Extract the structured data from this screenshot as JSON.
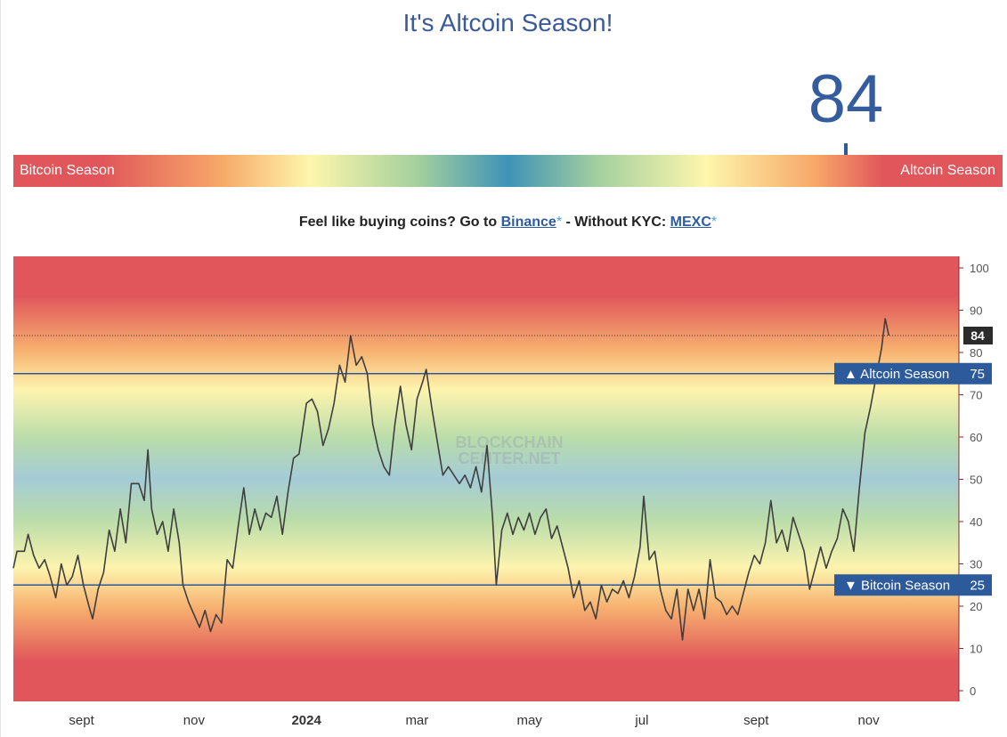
{
  "header": {
    "title": "It's Altcoin Season!",
    "index_value": "84"
  },
  "gauge": {
    "left_label": "Bitcoin Season",
    "right_label": "Altcoin Season",
    "value": 84,
    "min": 0,
    "max": 100
  },
  "promo": {
    "lead": "Feel like buying coins? Go to ",
    "link1": "Binance",
    "star1": "*",
    "middle": " - Without KYC: ",
    "link2": "MEXC",
    "star2": "*"
  },
  "colors": {
    "title": "#3a5a99",
    "line": "#3f3f3f",
    "threshold_line": "#2d5a9a",
    "bitcoin_red": "#e0565b",
    "mid_blue": "#3f93b7"
  },
  "chart_data": {
    "type": "line",
    "watermark": [
      "BLOCKCHAIN",
      "CENTER.NET"
    ],
    "ylim": [
      0,
      100
    ],
    "yticks": [
      0,
      10,
      20,
      30,
      40,
      50,
      60,
      70,
      80,
      90,
      100
    ],
    "xticks": [
      {
        "label": "sept",
        "x": "2023-09-01",
        "bold": false
      },
      {
        "label": "nov",
        "x": "2023-11-01",
        "bold": false
      },
      {
        "label": "2024",
        "x": "2024-01-01",
        "bold": true
      },
      {
        "label": "mar",
        "x": "2024-03-01",
        "bold": false
      },
      {
        "label": "may",
        "x": "2024-05-01",
        "bold": false
      },
      {
        "label": "jul",
        "x": "2024-07-01",
        "bold": false
      },
      {
        "label": "sept",
        "x": "2024-09-01",
        "bold": false
      },
      {
        "label": "nov",
        "x": "2024-11-01",
        "bold": false
      }
    ],
    "xlim": [
      "2023-07-26",
      "2024-12-20"
    ],
    "thresholds": [
      {
        "label": "▲ Altcoin Season",
        "value": 75
      },
      {
        "label": "▼ Bitcoin Season",
        "value": 25
      }
    ],
    "current": {
      "label": "84",
      "value": 84
    },
    "series": [
      {
        "points": [
          [
            "2023-07-26",
            29
          ],
          [
            "2023-07-28",
            33
          ],
          [
            "2023-08-01",
            33
          ],
          [
            "2023-08-03",
            37
          ],
          [
            "2023-08-06",
            32
          ],
          [
            "2023-08-09",
            29
          ],
          [
            "2023-08-12",
            31
          ],
          [
            "2023-08-15",
            27
          ],
          [
            "2023-08-18",
            22
          ],
          [
            "2023-08-21",
            30
          ],
          [
            "2023-08-24",
            25
          ],
          [
            "2023-08-27",
            27
          ],
          [
            "2023-08-30",
            32
          ],
          [
            "2023-09-02",
            25
          ],
          [
            "2023-09-05",
            20
          ],
          [
            "2023-09-07",
            17
          ],
          [
            "2023-09-10",
            24
          ],
          [
            "2023-09-13",
            28
          ],
          [
            "2023-09-16",
            38
          ],
          [
            "2023-09-19",
            33
          ],
          [
            "2023-09-22",
            43
          ],
          [
            "2023-09-25",
            35
          ],
          [
            "2023-09-28",
            49
          ],
          [
            "2023-10-02",
            49
          ],
          [
            "2023-10-05",
            45
          ],
          [
            "2023-10-07",
            57
          ],
          [
            "2023-10-09",
            43
          ],
          [
            "2023-10-12",
            37
          ],
          [
            "2023-10-15",
            40
          ],
          [
            "2023-10-18",
            33
          ],
          [
            "2023-10-21",
            43
          ],
          [
            "2023-10-24",
            35
          ],
          [
            "2023-10-26",
            25
          ],
          [
            "2023-10-29",
            21
          ],
          [
            "2023-11-01",
            18
          ],
          [
            "2023-11-04",
            15
          ],
          [
            "2023-11-07",
            19
          ],
          [
            "2023-11-10",
            14
          ],
          [
            "2023-11-13",
            18
          ],
          [
            "2023-11-16",
            16
          ],
          [
            "2023-11-19",
            31
          ],
          [
            "2023-11-22",
            29
          ],
          [
            "2023-11-25",
            39
          ],
          [
            "2023-11-28",
            48
          ],
          [
            "2023-12-01",
            37
          ],
          [
            "2023-12-04",
            43
          ],
          [
            "2023-12-07",
            38
          ],
          [
            "2023-12-10",
            42
          ],
          [
            "2023-12-13",
            41
          ],
          [
            "2023-12-16",
            46
          ],
          [
            "2023-12-19",
            37
          ],
          [
            "2023-12-22",
            47
          ],
          [
            "2023-12-25",
            55
          ],
          [
            "2023-12-28",
            56
          ],
          [
            "2024-01-01",
            68
          ],
          [
            "2024-01-04",
            69
          ],
          [
            "2024-01-07",
            66
          ],
          [
            "2024-01-10",
            58
          ],
          [
            "2024-01-13",
            62
          ],
          [
            "2024-01-16",
            68
          ],
          [
            "2024-01-19",
            77
          ],
          [
            "2024-01-22",
            73
          ],
          [
            "2024-01-25",
            84
          ],
          [
            "2024-01-28",
            77
          ],
          [
            "2024-01-31",
            79
          ],
          [
            "2024-02-03",
            75
          ],
          [
            "2024-02-06",
            63
          ],
          [
            "2024-02-09",
            57
          ],
          [
            "2024-02-12",
            53
          ],
          [
            "2024-02-15",
            51
          ],
          [
            "2024-02-18",
            63
          ],
          [
            "2024-02-21",
            72
          ],
          [
            "2024-02-24",
            63
          ],
          [
            "2024-02-27",
            57
          ],
          [
            "2024-03-01",
            69
          ],
          [
            "2024-03-04",
            73
          ],
          [
            "2024-03-06",
            76
          ],
          [
            "2024-03-09",
            67
          ],
          [
            "2024-03-12",
            59
          ],
          [
            "2024-03-15",
            51
          ],
          [
            "2024-03-18",
            53
          ],
          [
            "2024-03-21",
            51
          ],
          [
            "2024-03-24",
            49
          ],
          [
            "2024-03-27",
            51
          ],
          [
            "2024-03-30",
            48
          ],
          [
            "2024-04-02",
            53
          ],
          [
            "2024-04-05",
            47
          ],
          [
            "2024-04-08",
            58
          ],
          [
            "2024-04-11",
            41
          ],
          [
            "2024-04-13",
            25
          ],
          [
            "2024-04-16",
            38
          ],
          [
            "2024-04-19",
            42
          ],
          [
            "2024-04-22",
            37
          ],
          [
            "2024-04-25",
            41
          ],
          [
            "2024-04-28",
            38
          ],
          [
            "2024-05-01",
            42
          ],
          [
            "2024-05-04",
            37
          ],
          [
            "2024-05-07",
            41
          ],
          [
            "2024-05-10",
            43
          ],
          [
            "2024-05-13",
            36
          ],
          [
            "2024-05-16",
            39
          ],
          [
            "2024-05-19",
            34
          ],
          [
            "2024-05-22",
            29
          ],
          [
            "2024-05-25",
            22
          ],
          [
            "2024-05-28",
            26
          ],
          [
            "2024-05-31",
            19
          ],
          [
            "2024-06-03",
            21
          ],
          [
            "2024-06-06",
            17
          ],
          [
            "2024-06-09",
            25
          ],
          [
            "2024-06-12",
            21
          ],
          [
            "2024-06-15",
            24
          ],
          [
            "2024-06-18",
            23
          ],
          [
            "2024-06-21",
            26
          ],
          [
            "2024-06-24",
            22
          ],
          [
            "2024-06-27",
            27
          ],
          [
            "2024-06-30",
            34
          ],
          [
            "2024-07-02",
            46
          ],
          [
            "2024-07-05",
            31
          ],
          [
            "2024-07-08",
            33
          ],
          [
            "2024-07-11",
            24
          ],
          [
            "2024-07-14",
            19
          ],
          [
            "2024-07-17",
            17
          ],
          [
            "2024-07-20",
            24
          ],
          [
            "2024-07-23",
            12
          ],
          [
            "2024-07-26",
            24
          ],
          [
            "2024-07-29",
            19
          ],
          [
            "2024-08-01",
            24
          ],
          [
            "2024-08-04",
            17
          ],
          [
            "2024-08-07",
            31
          ],
          [
            "2024-08-10",
            22
          ],
          [
            "2024-08-13",
            21
          ],
          [
            "2024-08-16",
            18
          ],
          [
            "2024-08-19",
            20
          ],
          [
            "2024-08-22",
            18
          ],
          [
            "2024-08-25",
            23
          ],
          [
            "2024-08-28",
            28
          ],
          [
            "2024-08-31",
            32
          ],
          [
            "2024-09-03",
            30
          ],
          [
            "2024-09-06",
            35
          ],
          [
            "2024-09-09",
            45
          ],
          [
            "2024-09-12",
            35
          ],
          [
            "2024-09-15",
            38
          ],
          [
            "2024-09-18",
            33
          ],
          [
            "2024-09-21",
            41
          ],
          [
            "2024-09-24",
            37
          ],
          [
            "2024-09-27",
            33
          ],
          [
            "2024-09-30",
            24
          ],
          [
            "2024-10-03",
            29
          ],
          [
            "2024-10-06",
            34
          ],
          [
            "2024-10-09",
            29
          ],
          [
            "2024-10-12",
            33
          ],
          [
            "2024-10-15",
            36
          ],
          [
            "2024-10-18",
            43
          ],
          [
            "2024-10-21",
            40
          ],
          [
            "2024-10-24",
            33
          ],
          [
            "2024-10-27",
            48
          ],
          [
            "2024-10-30",
            61
          ],
          [
            "2024-11-02",
            67
          ],
          [
            "2024-11-05",
            74
          ],
          [
            "2024-11-08",
            81
          ],
          [
            "2024-11-10",
            88
          ],
          [
            "2024-11-12",
            84
          ]
        ]
      }
    ]
  }
}
